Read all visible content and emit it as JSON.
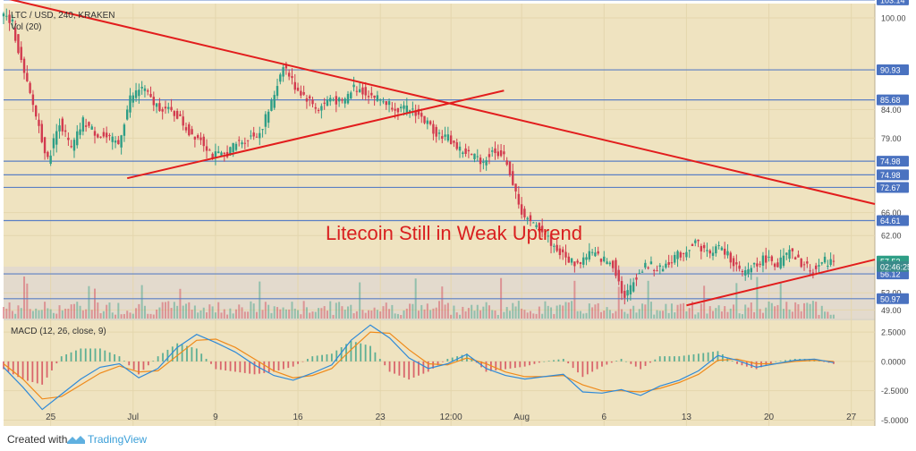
{
  "chart_data": {
    "type": "candlestick",
    "header": {
      "symbol_line": "LTC / USD, 240, KRAKEN",
      "vol_label": "Vol (20)"
    },
    "annotation": "Litecoin Still in Weak Uptrend",
    "price_axis": {
      "ticks": [
        "100.00",
        "84.00",
        "79.00",
        "66.00",
        "62.00",
        "52.00",
        "49.00"
      ],
      "tick_values": [
        100,
        84,
        79,
        66,
        62,
        52,
        49
      ],
      "ylim": [
        47.5,
        102.5
      ]
    },
    "horizontal_levels": [
      {
        "label": "103.14",
        "value": 103.14
      },
      {
        "label": "90.93",
        "value": 90.93
      },
      {
        "label": "85.68",
        "value": 85.68
      },
      {
        "label": "74.98",
        "value": 74.98
      },
      {
        "label": "74.98",
        "value": 72.6
      },
      {
        "label": "72.67",
        "value": 70.4
      },
      {
        "label": "64.61",
        "value": 64.61
      },
      {
        "label": "56.12",
        "value": 55.3
      },
      {
        "label": "50.97",
        "value": 50.97
      }
    ],
    "current_price": {
      "label": "57.53",
      "value": 57.53
    },
    "countdown": {
      "label": "02:46:25",
      "value": 56.6
    },
    "trendlines": [
      {
        "name": "descending",
        "from": [
          "Jun 21",
          103.5
        ],
        "to": [
          "Aug 27",
          67.5
        ]
      },
      {
        "name": "ascending-1",
        "from": [
          "Jul 4",
          72.0
        ],
        "to": [
          "Jul 29",
          87.3
        ]
      },
      {
        "name": "ascending-2",
        "from": [
          "Aug 13",
          49.8
        ],
        "to": [
          "Aug 27",
          57.8
        ]
      }
    ],
    "macd": {
      "label": "MACD (12, 26, close, 9)",
      "ticks": [
        "2.5000",
        "0.0000",
        "-2.5000",
        "-5.0000"
      ],
      "tick_values": [
        2.5,
        0,
        -2.5,
        -5
      ],
      "ylim": [
        -5.5,
        3.5
      ],
      "series": [
        {
          "name": "MACD",
          "values": [
            [
              0,
              -0.5
            ],
            [
              2,
              -2.2
            ],
            [
              4,
              -4.1
            ],
            [
              6,
              -2.8
            ],
            [
              8,
              -1.5
            ],
            [
              10,
              -0.5
            ],
            [
              12,
              -0.2
            ],
            [
              14,
              -1.4
            ],
            [
              16,
              -0.6
            ],
            [
              18,
              1.2
            ],
            [
              20,
              2.3
            ],
            [
              22,
              1.6
            ],
            [
              24,
              0.8
            ],
            [
              26,
              -0.3
            ],
            [
              28,
              -1.2
            ],
            [
              30,
              -1.6
            ],
            [
              32,
              -1.0
            ],
            [
              34,
              -0.3
            ],
            [
              36,
              1.8
            ],
            [
              38,
              3.1
            ],
            [
              40,
              2.0
            ],
            [
              42,
              0.3
            ],
            [
              44,
              -0.6
            ],
            [
              46,
              -0.2
            ],
            [
              48,
              0.6
            ],
            [
              50,
              -0.6
            ],
            [
              52,
              -1.2
            ],
            [
              54,
              -1.5
            ],
            [
              56,
              -1.3
            ],
            [
              58,
              -1.1
            ],
            [
              60,
              -2.6
            ],
            [
              62,
              -2.7
            ],
            [
              64,
              -2.4
            ],
            [
              66,
              -2.9
            ],
            [
              68,
              -2.1
            ],
            [
              70,
              -1.6
            ],
            [
              72,
              -0.8
            ],
            [
              74,
              0.5
            ],
            [
              76,
              0.1
            ],
            [
              78,
              -0.5
            ],
            [
              80,
              -0.2
            ],
            [
              82,
              0.1
            ],
            [
              84,
              0.2
            ],
            [
              86,
              -0.1
            ]
          ]
        },
        {
          "name": "Signal",
          "values": [
            [
              0,
              -0.2
            ],
            [
              2,
              -1.5
            ],
            [
              4,
              -3.2
            ],
            [
              6,
              -3.0
            ],
            [
              8,
              -2.0
            ],
            [
              10,
              -1.0
            ],
            [
              12,
              -0.4
            ],
            [
              14,
              -0.9
            ],
            [
              16,
              -0.8
            ],
            [
              18,
              0.5
            ],
            [
              20,
              1.8
            ],
            [
              22,
              1.9
            ],
            [
              24,
              1.2
            ],
            [
              26,
              0.2
            ],
            [
              28,
              -0.8
            ],
            [
              30,
              -1.4
            ],
            [
              32,
              -1.2
            ],
            [
              34,
              -0.6
            ],
            [
              36,
              1.0
            ],
            [
              38,
              2.5
            ],
            [
              40,
              2.4
            ],
            [
              42,
              1.0
            ],
            [
              44,
              -0.2
            ],
            [
              46,
              -0.3
            ],
            [
              48,
              0.3
            ],
            [
              50,
              -0.2
            ],
            [
              52,
              -0.9
            ],
            [
              54,
              -1.3
            ],
            [
              56,
              -1.3
            ],
            [
              58,
              -1.2
            ],
            [
              60,
              -2.0
            ],
            [
              62,
              -2.5
            ],
            [
              64,
              -2.5
            ],
            [
              66,
              -2.6
            ],
            [
              68,
              -2.3
            ],
            [
              70,
              -1.8
            ],
            [
              72,
              -1.1
            ],
            [
              74,
              0.1
            ],
            [
              76,
              0.2
            ],
            [
              78,
              -0.2
            ],
            [
              80,
              -0.2
            ],
            [
              82,
              0.0
            ],
            [
              84,
              0.1
            ],
            [
              86,
              0.0
            ]
          ]
        }
      ]
    },
    "x_axis": {
      "ticks": [
        "25",
        "Jul",
        "9",
        "16",
        "23",
        "12:00",
        "Aug",
        "6",
        "13",
        "20",
        "27"
      ],
      "tick_values": [
        4,
        11,
        18,
        25,
        32,
        38,
        44,
        51,
        58,
        65,
        72
      ]
    },
    "x_range": [
      0,
      74
    ],
    "candles": {
      "approx_path": [
        [
          0,
          101
        ],
        [
          1,
          99
        ],
        [
          2,
          90
        ],
        [
          3,
          83
        ],
        [
          4,
          75
        ],
        [
          5,
          82
        ],
        [
          6,
          77
        ],
        [
          7,
          82
        ],
        [
          8,
          80
        ],
        [
          9,
          79
        ],
        [
          10,
          78
        ],
        [
          11,
          86
        ],
        [
          12,
          88
        ],
        [
          13,
          85
        ],
        [
          14,
          84
        ],
        [
          15,
          83
        ],
        [
          16,
          80
        ],
        [
          17,
          79
        ],
        [
          18,
          76
        ],
        [
          19,
          76
        ],
        [
          20,
          78
        ],
        [
          21,
          79
        ],
        [
          22,
          80
        ],
        [
          23,
          85
        ],
        [
          24,
          92
        ],
        [
          25,
          88
        ],
        [
          26,
          86
        ],
        [
          27,
          84
        ],
        [
          28,
          86
        ],
        [
          29,
          85
        ],
        [
          30,
          88
        ],
        [
          31,
          87
        ],
        [
          32,
          86
        ],
        [
          33,
          85
        ],
        [
          34,
          84
        ],
        [
          35,
          84
        ],
        [
          36,
          82
        ],
        [
          37,
          80
        ],
        [
          38,
          79
        ],
        [
          39,
          77
        ],
        [
          40,
          76
        ],
        [
          41,
          75
        ],
        [
          42,
          77
        ],
        [
          43,
          75
        ],
        [
          44,
          67
        ],
        [
          45,
          64
        ],
        [
          46,
          63
        ],
        [
          47,
          60
        ],
        [
          48,
          58
        ],
        [
          49,
          57
        ],
        [
          50,
          59
        ],
        [
          51,
          58
        ],
        [
          52,
          57
        ],
        [
          53,
          51
        ],
        [
          54,
          55
        ],
        [
          55,
          57
        ],
        [
          56,
          56
        ],
        [
          57,
          58
        ],
        [
          58,
          59
        ],
        [
          59,
          61
        ],
        [
          60,
          59
        ],
        [
          61,
          60
        ],
        [
          62,
          58
        ],
        [
          63,
          55
        ],
        [
          64,
          57
        ],
        [
          65,
          58
        ],
        [
          66,
          57
        ],
        [
          67,
          59
        ],
        [
          68,
          57
        ],
        [
          69,
          56
        ],
        [
          70,
          57.5
        ]
      ]
    },
    "colors": {
      "background": "#efe3c0",
      "up": "#2e9e86",
      "down": "#d23b4f",
      "level_line": "#5b7fc4",
      "trendline": "#e21d1d",
      "macd_line": "#2f8ad8",
      "signal_line": "#ef8a1a",
      "label_box": "#4a72c0",
      "current_box": "#2e9e86",
      "countdown_box": "#3a8a8a"
    }
  },
  "footer": {
    "created_with": "Created with",
    "brand": "TradingView"
  }
}
